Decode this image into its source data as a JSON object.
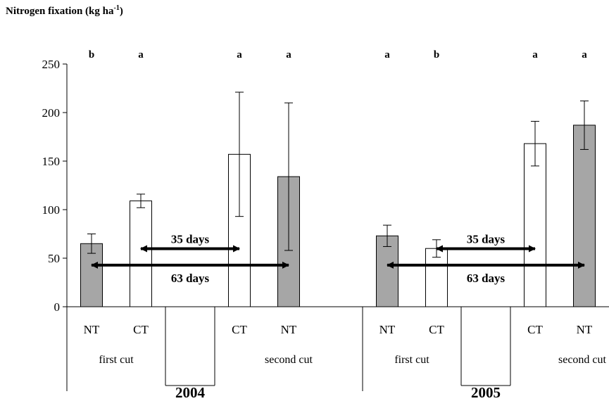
{
  "chart_data": {
    "type": "bar",
    "ylabel": "Nitrogen fixation (kg ha",
    "ylabel_exponent": "-1",
    "ylabel_close": ")",
    "ylim": [
      0,
      250
    ],
    "yticks": [
      0,
      50,
      100,
      150,
      200,
      250
    ],
    "grid": false,
    "legend": "none",
    "colors": {
      "NT": "#a6a6a6",
      "CT": "#ffffff"
    },
    "bars": [
      {
        "year": "2004",
        "cut": "first cut",
        "treatment": "NT",
        "value": 65,
        "error": 10,
        "letter": "b"
      },
      {
        "year": "2004",
        "cut": "first cut",
        "treatment": "CT",
        "value": 109,
        "error": 7,
        "letter": "a"
      },
      {
        "year": "2004",
        "cut": "second cut",
        "treatment": "CT",
        "value": 157,
        "error": 64,
        "letter": "a"
      },
      {
        "year": "2004",
        "cut": "second cut",
        "treatment": "NT",
        "value": 134,
        "error": 76,
        "letter": "a"
      },
      {
        "year": "2005",
        "cut": "first cut",
        "treatment": "NT",
        "value": 73,
        "error": 11,
        "letter": "a"
      },
      {
        "year": "2005",
        "cut": "first cut",
        "treatment": "CT",
        "value": 60,
        "error": 9,
        "letter": "b"
      },
      {
        "year": "2005",
        "cut": "second cut",
        "treatment": "CT",
        "value": 168,
        "error": 23,
        "letter": "a"
      },
      {
        "year": "2005",
        "cut": "second cut",
        "treatment": "NT",
        "value": 187,
        "error": 25,
        "letter": "a"
      }
    ],
    "years": [
      "2004",
      "2005"
    ],
    "cut_labels": [
      "first cut",
      "second cut",
      "first cut",
      "second cut"
    ],
    "annotations": [
      {
        "text": "35 days",
        "from_bar": 1,
        "to_bar": 2,
        "y": 62
      },
      {
        "text": "63 days",
        "from_bar": 0,
        "to_bar": 3,
        "y": 45
      },
      {
        "text": "35 days",
        "from_bar": 5,
        "to_bar": 6,
        "y": 62
      },
      {
        "text": "63 days",
        "from_bar": 4,
        "to_bar": 7,
        "y": 45
      }
    ]
  }
}
